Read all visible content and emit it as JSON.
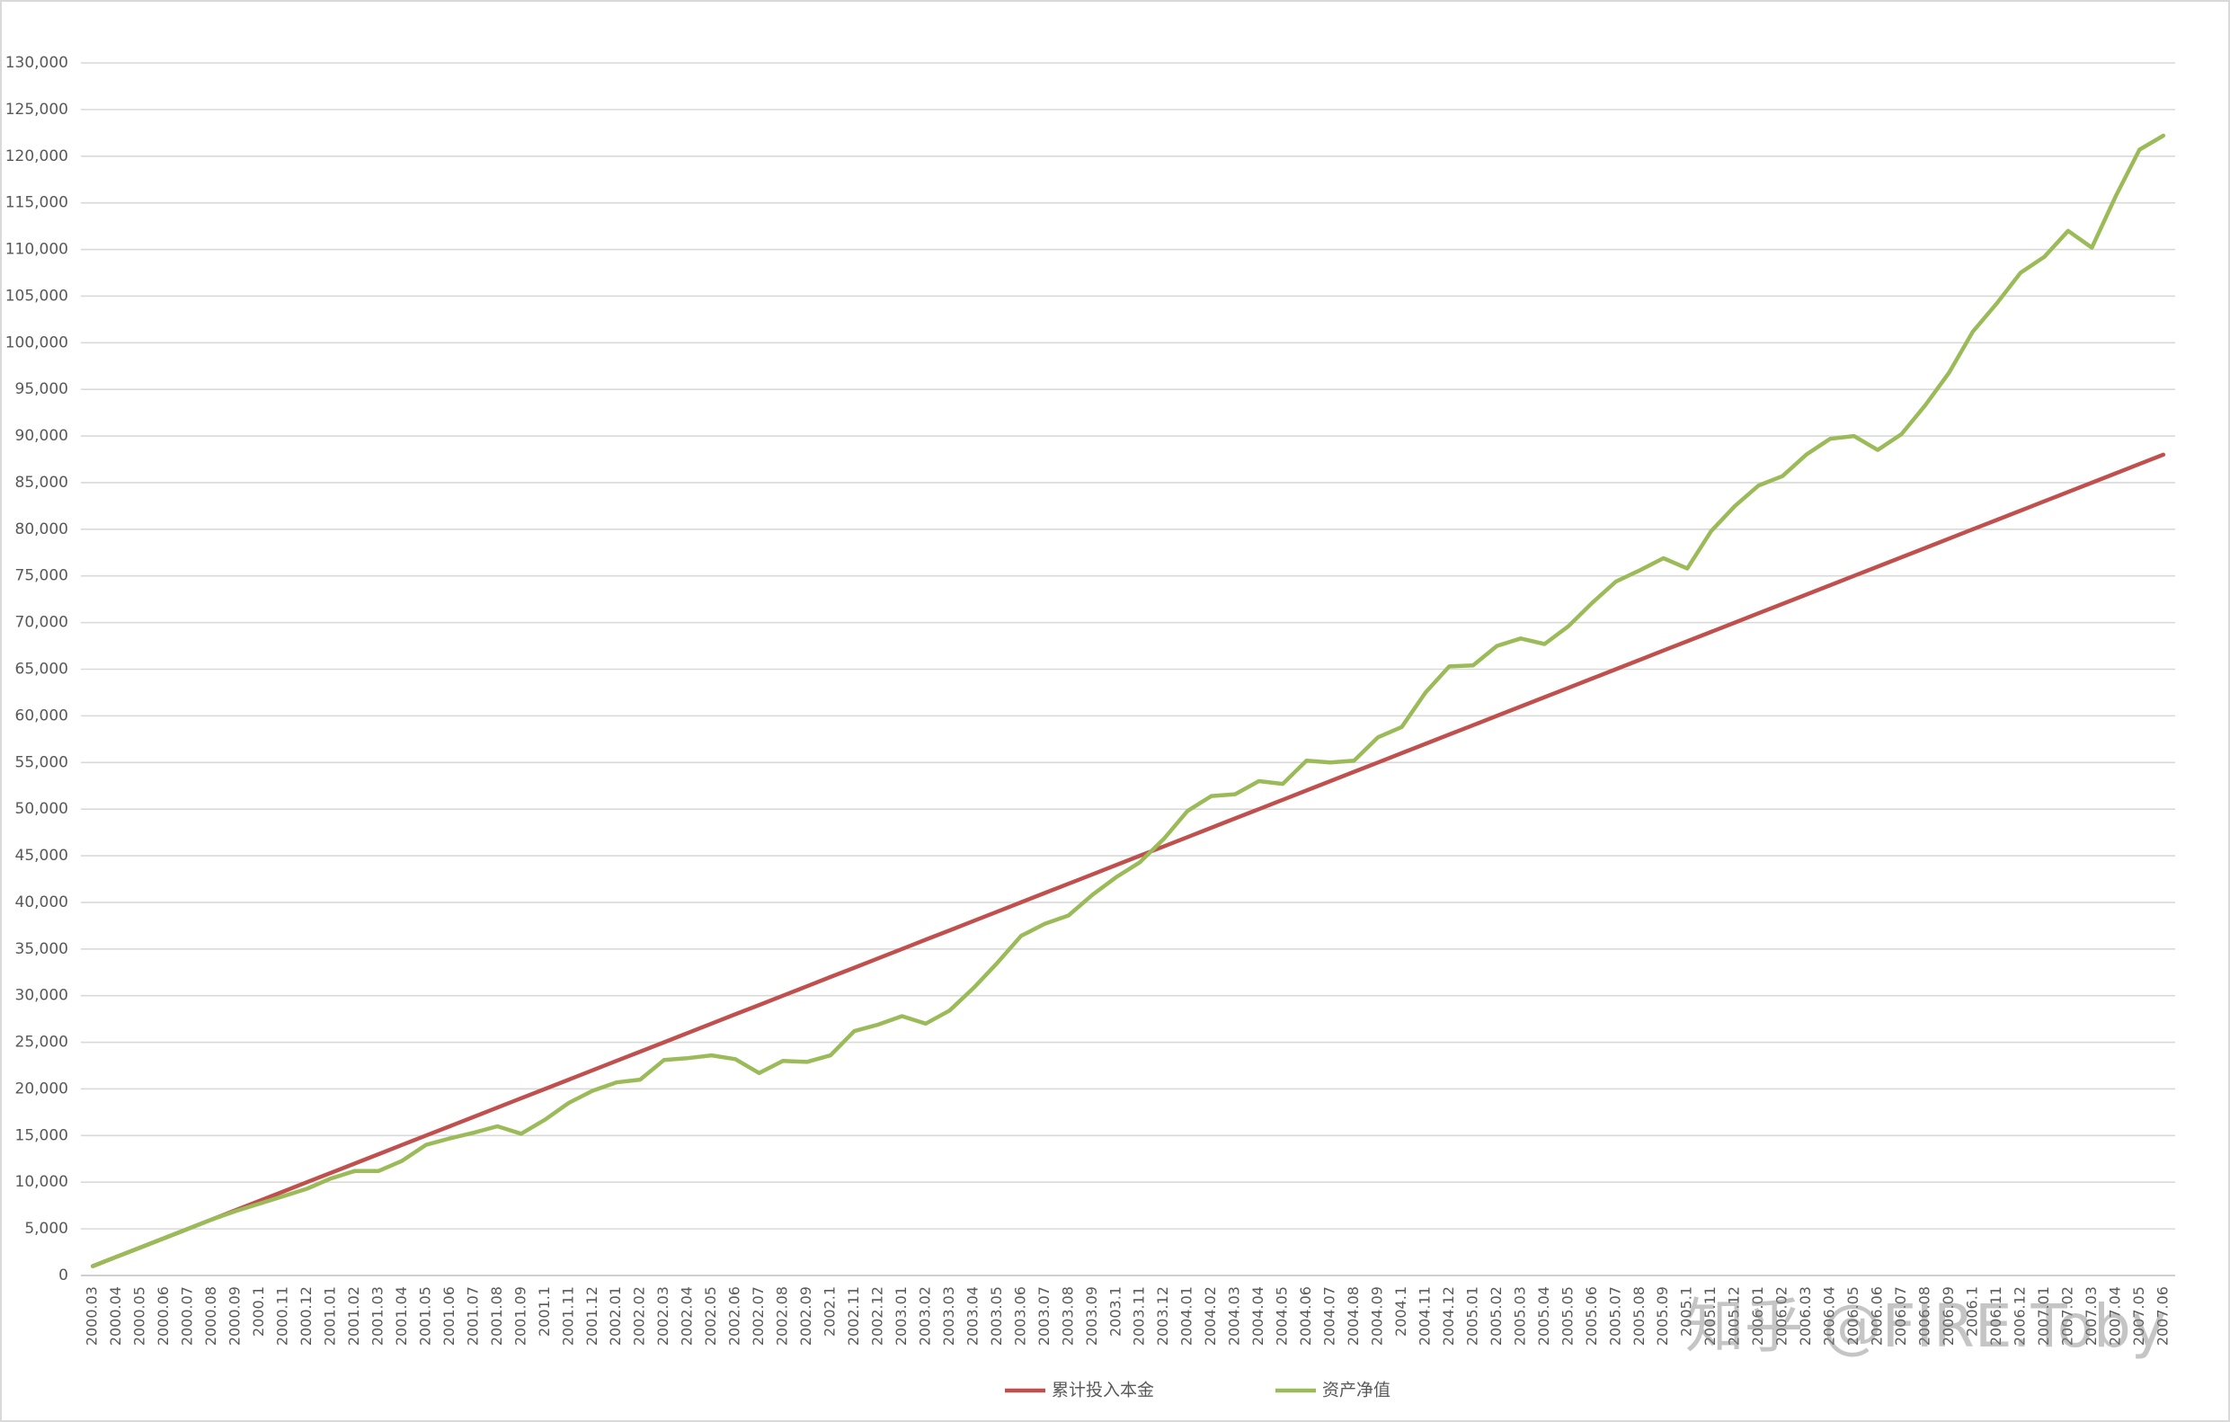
{
  "chart_data": {
    "type": "line",
    "categories": [
      "2000.03",
      "2000.04",
      "2000.05",
      "2000.06",
      "2000.07",
      "2000.08",
      "2000.09",
      "2000.1",
      "2000.11",
      "2000.12",
      "2001.01",
      "2001.02",
      "2001.03",
      "2001.04",
      "2001.05",
      "2001.06",
      "2001.07",
      "2001.08",
      "2001.09",
      "2001.1",
      "2001.11",
      "2001.12",
      "2002.01",
      "2002.02",
      "2002.03",
      "2002.04",
      "2002.05",
      "2002.06",
      "2002.07",
      "2002.08",
      "2002.09",
      "2002.1",
      "2002.11",
      "2002.12",
      "2003.01",
      "2003.02",
      "2003.03",
      "2003.04",
      "2003.05",
      "2003.06",
      "2003.07",
      "2003.08",
      "2003.09",
      "2003.1",
      "2003.11",
      "2003.12",
      "2004.01",
      "2004.02",
      "2004.03",
      "2004.04",
      "2004.05",
      "2004.06",
      "2004.07",
      "2004.08",
      "2004.09",
      "2004.1",
      "2004.11",
      "2004.12",
      "2005.01",
      "2005.02",
      "2005.03",
      "2005.04",
      "2005.05",
      "2005.06",
      "2005.07",
      "2005.08",
      "2005.09",
      "2005.1",
      "2005.11",
      "2005.12",
      "2006.01",
      "2006.02",
      "2006.03",
      "2006.04",
      "2006.05",
      "2006.06",
      "2006.07",
      "2006.08",
      "2006.09",
      "2006.1",
      "2006.11",
      "2006.12",
      "2007.01",
      "2007.02",
      "2007.03",
      "2007.04",
      "2007.05",
      "2007.06"
    ],
    "series": [
      {
        "name": "累计投入本金",
        "color": "#c0504d",
        "values": [
          1000,
          2000,
          3000,
          4000,
          5000,
          6000,
          7000,
          8000,
          9000,
          10000,
          11000,
          12000,
          13000,
          14000,
          15000,
          16000,
          17000,
          18000,
          19000,
          20000,
          21000,
          22000,
          23000,
          24000,
          25000,
          26000,
          27000,
          28000,
          29000,
          30000,
          31000,
          32000,
          33000,
          34000,
          35000,
          36000,
          37000,
          38000,
          39000,
          40000,
          41000,
          42000,
          43000,
          44000,
          45000,
          46000,
          47000,
          48000,
          49000,
          50000,
          51000,
          52000,
          53000,
          54000,
          55000,
          56000,
          57000,
          58000,
          59000,
          60000,
          61000,
          62000,
          63000,
          64000,
          65000,
          66000,
          67000,
          68000,
          69000,
          70000,
          71000,
          72000,
          73000,
          74000,
          75000,
          76000,
          77000,
          78000,
          79000,
          80000,
          81000,
          82000,
          83000,
          84000,
          85000,
          86000,
          87000,
          88000
        ]
      },
      {
        "name": "资产净值",
        "color": "#9bbb59",
        "values": [
          1000,
          2000,
          3000,
          4000,
          5000,
          6000,
          6900,
          7700,
          8500,
          9300,
          10400,
          11200,
          11200,
          12300,
          14000,
          14700,
          15300,
          16000,
          15200,
          16700,
          18500,
          19800,
          20700,
          21000,
          23100,
          23300,
          23600,
          23200,
          21700,
          23000,
          22900,
          23600,
          26200,
          26900,
          27800,
          27000,
          28400,
          30800,
          33500,
          36400,
          37700,
          38600,
          40800,
          42700,
          44300,
          46800,
          49800,
          51400,
          51600,
          53000,
          52700,
          55200,
          55000,
          55200,
          57700,
          58800,
          62500,
          65300,
          65400,
          67500,
          68300,
          67700,
          69600,
          72100,
          74400,
          75600,
          76900,
          75800,
          79800,
          82500,
          84700,
          85700,
          88000,
          89700,
          90000,
          88500,
          90200,
          93300,
          96800,
          101200,
          104200,
          107500,
          109200,
          112000,
          110200,
          115700,
          120700,
          122200
        ]
      }
    ],
    "ylim": [
      0,
      130000
    ],
    "yticks": [
      0,
      {
        "value": 5000,
        "label": "5,000"
      },
      {
        "value": 10000,
        "label": "10,000"
      },
      {
        "value": 15000,
        "label": "15,000"
      },
      {
        "value": 20000,
        "label": "20,000"
      },
      {
        "value": 25000,
        "label": "25,000"
      },
      {
        "value": 30000,
        "label": "30,000"
      },
      {
        "value": 35000,
        "label": "35,000"
      },
      {
        "value": 40000,
        "label": "40,000"
      },
      {
        "value": 45000,
        "label": "45,000"
      },
      {
        "value": 50000,
        "label": "50,000"
      },
      {
        "value": 55000,
        "label": "55,000"
      },
      {
        "value": 60000,
        "label": "60,000"
      },
      {
        "value": 65000,
        "label": "65,000"
      },
      {
        "value": 70000,
        "label": "70,000"
      },
      {
        "value": 75000,
        "label": "75,000"
      },
      {
        "value": 80000,
        "label": "80,000"
      },
      {
        "value": 85000,
        "label": "85,000"
      },
      {
        "value": 90000,
        "label": "90,000"
      },
      {
        "value": 95000,
        "label": "95,000"
      },
      {
        "value": 100000,
        "label": "100,000"
      },
      {
        "value": 105000,
        "label": "105,000"
      },
      {
        "value": 110000,
        "label": "110,000"
      },
      {
        "value": 115000,
        "label": "115,000"
      },
      {
        "value": 120000,
        "label": "120,000"
      },
      {
        "value": 125000,
        "label": "125,000"
      },
      {
        "value": 130000,
        "label": "130,000"
      }
    ],
    "grid": true,
    "legend": "bottom",
    "watermark": "知乎 @FIRE.Toby"
  }
}
